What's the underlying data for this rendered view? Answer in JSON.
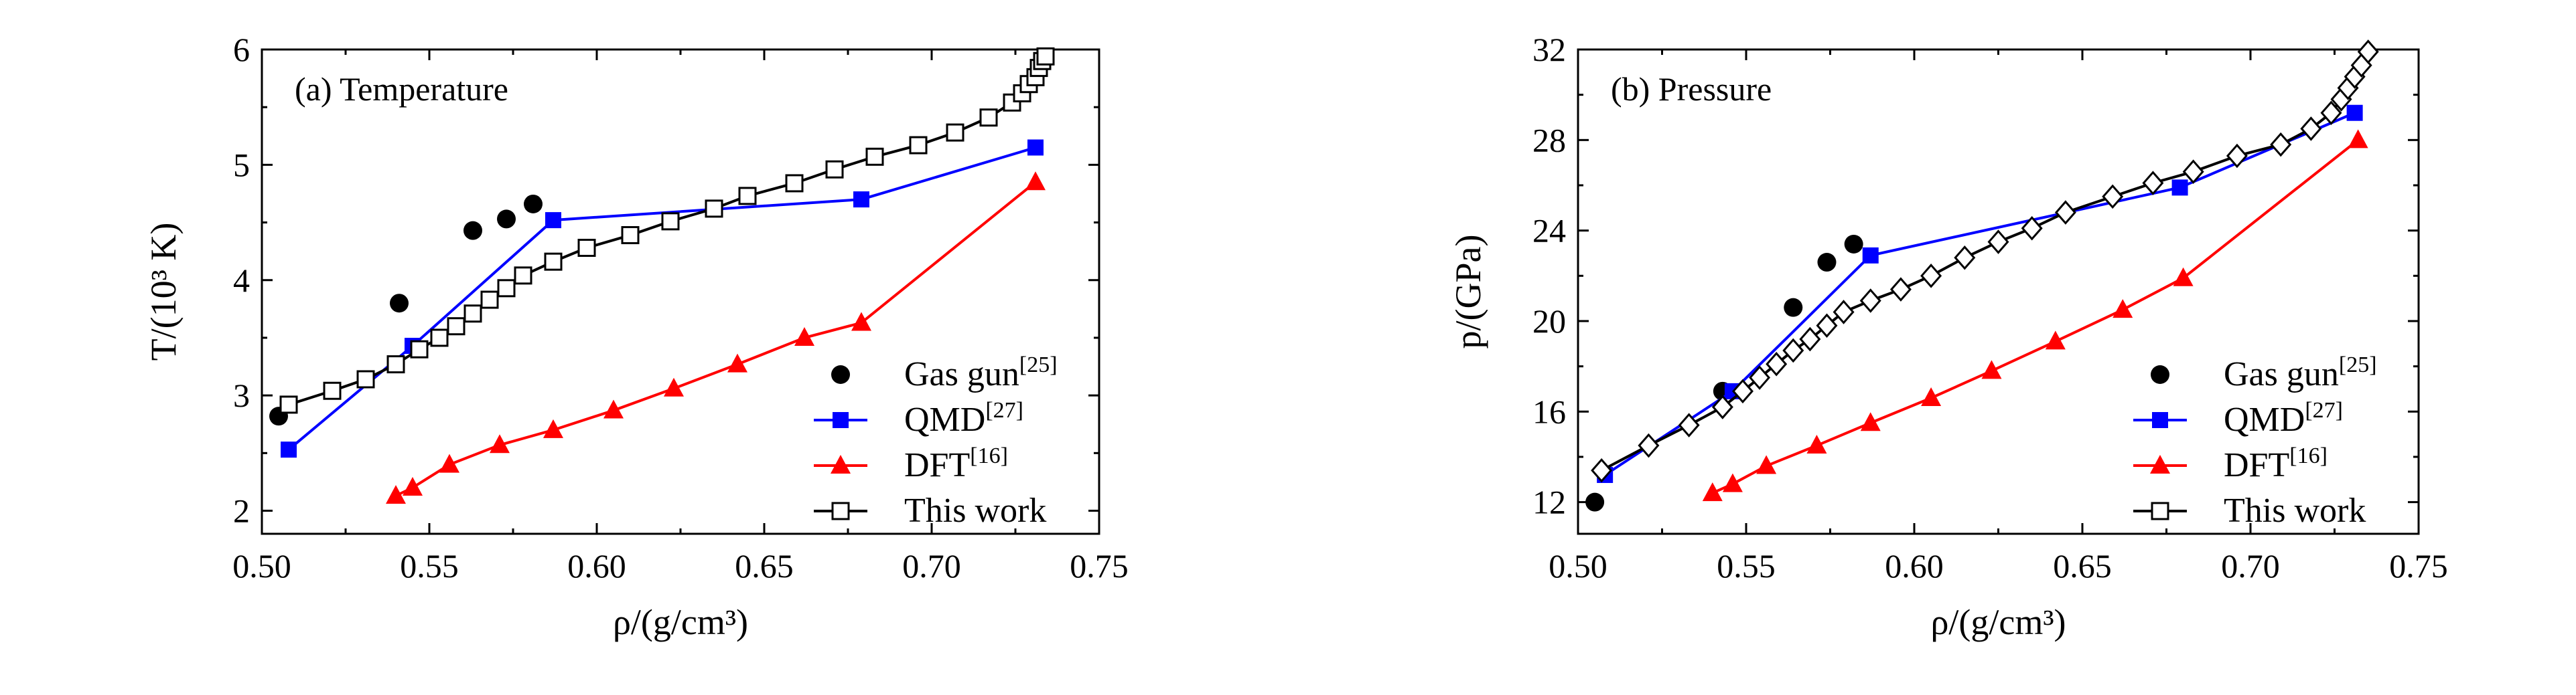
{
  "chart_data": [
    {
      "type": "line",
      "title": "(a) Temperature",
      "xlabel": "ρ/(g/cm³)",
      "ylabel": "T/(10³ K)",
      "xlim": [
        0.5,
        0.75
      ],
      "ylim": [
        1.8,
        6.0
      ],
      "xticks": [
        0.5,
        0.55,
        0.6,
        0.65,
        0.7,
        0.75
      ],
      "yticks": [
        2,
        3,
        4,
        5,
        6
      ],
      "xtick_labels": [
        "0.50",
        "0.55",
        "0.60",
        "0.65",
        "0.70",
        "0.75"
      ],
      "ytick_labels": [
        "2",
        "3",
        "4",
        "5",
        "6"
      ],
      "legend_position": "bottom-right",
      "series": [
        {
          "name": "Gas gun",
          "ref": "[25]",
          "marker": "circle",
          "line": false,
          "color": "#000000",
          "x": [
            0.505,
            0.541,
            0.563,
            0.573,
            0.581
          ],
          "y": [
            2.82,
            3.8,
            4.43,
            4.53,
            4.66
          ]
        },
        {
          "name": "QMD",
          "ref": "[27]",
          "marker": "square",
          "line": true,
          "color": "#0000ff",
          "x": [
            0.508,
            0.545,
            0.587,
            0.679,
            0.731
          ],
          "y": [
            2.53,
            3.43,
            4.52,
            4.7,
            5.15
          ]
        },
        {
          "name": "DFT",
          "ref": "[16]",
          "marker": "triangle",
          "line": true,
          "color": "#ff0000",
          "x": [
            0.54,
            0.545,
            0.556,
            0.571,
            0.587,
            0.605,
            0.623,
            0.642,
            0.662,
            0.679,
            0.731
          ],
          "y": [
            2.13,
            2.2,
            2.4,
            2.57,
            2.7,
            2.87,
            3.06,
            3.27,
            3.5,
            3.63,
            4.85
          ]
        },
        {
          "name": "This work",
          "ref": "",
          "marker": "open-square",
          "line": true,
          "color": "#000000",
          "x": [
            0.508,
            0.521,
            0.531,
            0.54,
            0.547,
            0.553,
            0.558,
            0.563,
            0.568,
            0.573,
            0.578,
            0.587,
            0.597,
            0.61,
            0.622,
            0.635,
            0.645,
            0.659,
            0.671,
            0.683,
            0.696,
            0.707,
            0.717,
            0.724,
            0.727,
            0.729,
            0.731,
            0.732,
            0.733,
            0.734
          ],
          "y": [
            2.92,
            3.04,
            3.14,
            3.27,
            3.4,
            3.5,
            3.6,
            3.71,
            3.83,
            3.93,
            4.04,
            4.16,
            4.28,
            4.39,
            4.51,
            4.62,
            4.73,
            4.84,
            4.96,
            5.07,
            5.17,
            5.28,
            5.41,
            5.54,
            5.62,
            5.7,
            5.76,
            5.84,
            5.9,
            5.94
          ]
        }
      ]
    },
    {
      "type": "line",
      "title": "(b) Pressure",
      "xlabel": "ρ/(g/cm³)",
      "ylabel": "p/(GPa)",
      "xlim": [
        0.5,
        0.75
      ],
      "ylim": [
        10.6,
        32
      ],
      "xticks": [
        0.5,
        0.55,
        0.6,
        0.65,
        0.7,
        0.75
      ],
      "yticks": [
        12,
        16,
        20,
        24,
        28,
        32
      ],
      "xtick_labels": [
        "0.50",
        "0.55",
        "0.60",
        "0.65",
        "0.70",
        "0.75"
      ],
      "ytick_labels": [
        "12",
        "16",
        "20",
        "24",
        "28",
        "32"
      ],
      "legend_position": "bottom-right",
      "series": [
        {
          "name": "Gas gun",
          "ref": "[25]",
          "marker": "circle",
          "line": false,
          "color": "#000000",
          "x": [
            0.505,
            0.543,
            0.564,
            0.574,
            0.582
          ],
          "y": [
            12.0,
            16.9,
            20.6,
            22.6,
            23.4
          ]
        },
        {
          "name": "QMD",
          "ref": "[27]",
          "marker": "square",
          "line": true,
          "color": "#0000ff",
          "x": [
            0.508,
            0.546,
            0.587,
            0.679,
            0.731
          ],
          "y": [
            13.2,
            16.9,
            22.9,
            25.9,
            29.2
          ]
        },
        {
          "name": "DFT",
          "ref": "[16]",
          "marker": "triangle",
          "line": true,
          "color": "#ff0000",
          "x": [
            0.54,
            0.546,
            0.556,
            0.571,
            0.587,
            0.605,
            0.623,
            0.642,
            0.662,
            0.68,
            0.732
          ],
          "y": [
            12.4,
            12.8,
            13.6,
            14.5,
            15.5,
            16.6,
            17.8,
            19.1,
            20.5,
            21.9,
            28.0
          ]
        },
        {
          "name": "This work",
          "ref": "",
          "marker": "open-diamond",
          "line": true,
          "color": "#000000",
          "x": [
            0.507,
            0.521,
            0.533,
            0.543,
            0.549,
            0.554,
            0.559,
            0.564,
            0.569,
            0.574,
            0.579,
            0.587,
            0.596,
            0.605,
            0.615,
            0.625,
            0.635,
            0.645,
            0.659,
            0.671,
            0.683,
            0.696,
            0.709,
            0.718,
            0.724,
            0.727,
            0.729,
            0.731,
            0.733,
            0.735
          ],
          "y": [
            13.4,
            14.5,
            15.4,
            16.2,
            16.9,
            17.5,
            18.1,
            18.7,
            19.2,
            19.8,
            20.4,
            20.9,
            21.4,
            22.0,
            22.8,
            23.5,
            24.1,
            24.8,
            25.5,
            26.1,
            26.6,
            27.3,
            27.8,
            28.5,
            29.2,
            29.8,
            30.3,
            30.8,
            31.3,
            31.9
          ]
        }
      ]
    }
  ]
}
